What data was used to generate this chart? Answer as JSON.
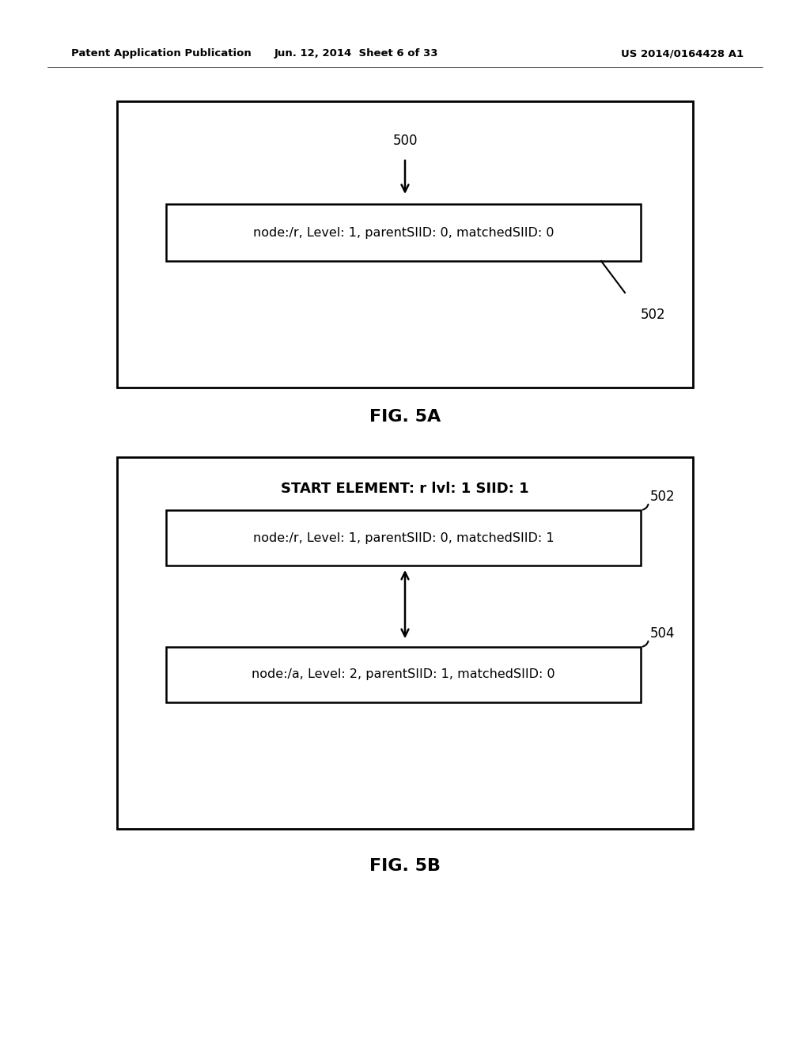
{
  "bg_color": "#ffffff",
  "header_left": "Patent Application Publication",
  "header_mid": "Jun. 12, 2014  Sheet 6 of 33",
  "header_right": "US 2014/0164428 A1",
  "fig5a_label": "500",
  "fig5a_inner_box_text": "node:/r, Level: 1, parentSIID: 0, matchedSIID: 0",
  "fig5a_inner_label": "502",
  "fig5a_caption": "FIG. 5A",
  "fig5b_header_text": "START ELEMENT: r lvl: 1 SIID: 1",
  "fig5b_box1_text": "node:/r, Level: 1, parentSIID: 0, matchedSIID: 1",
  "fig5b_box1_label": "502",
  "fig5b_box2_text": "node:/a, Level: 2, parentSIID: 1, matchedSIID: 0",
  "fig5b_box2_label": "504",
  "fig5b_caption": "FIG. 5B"
}
